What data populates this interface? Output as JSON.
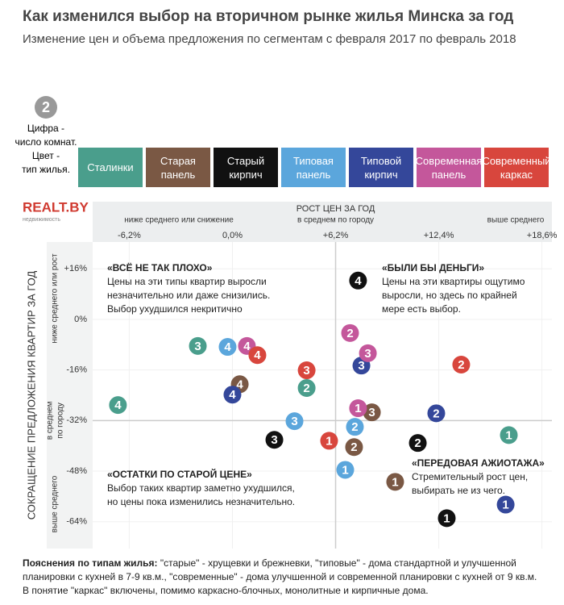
{
  "title": "Как изменился выбор на вторичном рынке жилья Минска за год",
  "subtitle": "Изменение цен и объема предложения по сегментам с февраля 2017 по февраль 2018",
  "key": {
    "sample": 2,
    "lines": [
      "Цифра -",
      "число комнат.",
      "Цвет -",
      "тип жилья."
    ]
  },
  "logo": {
    "name": "REALT.BY",
    "tagline": "недвижимость"
  },
  "footnote": {
    "label": "Пояснения по типам жилья:",
    "lines": [
      " \"старые\" - хрущевки и брежневки, \"типовые\" - дома стандартной и улучшенной",
      "планировки с кухней в 7-9 кв.м., \"современные\" - дома улучшенной и современной планировки с кухней от 9 кв.м.",
      "В понятие \"каркас\" включены, помимо каркасно-блочных, монолитные и кирпичные дома."
    ]
  },
  "chart_data": {
    "type": "scatter",
    "x_label": "РОСТ ЦЕН ЗА ГОД",
    "x_sublabels": [
      "ниже среднего или снижение",
      "в среднем по городу",
      "выше среднего"
    ],
    "y_label": "СОКРАЩЕНИЕ ПРЕДЛОЖЕНИЯ КВАРТИР ЗА ГОД",
    "y_sublabels": [
      "ниже среднего или рост",
      "в среднем",
      "по городу",
      "выше среднего"
    ],
    "xlim": [
      -8.4,
      19.2
    ],
    "ylim": [
      -72.5,
      24.5
    ],
    "xticks": [
      {
        "value": -6.2,
        "label": "-6,2%"
      },
      {
        "value": 0,
        "label": "0,0%"
      },
      {
        "value": 6.2,
        "label": "+6,2%"
      },
      {
        "value": 12.4,
        "label": "+12,4%"
      },
      {
        "value": 18.6,
        "label": "+18,6%"
      }
    ],
    "yticks": [
      {
        "value": 16,
        "label": "+16%"
      },
      {
        "value": 0,
        "label": "0%"
      },
      {
        "value": -16,
        "label": "-16%"
      },
      {
        "value": -32,
        "label": "-32%"
      },
      {
        "value": -48,
        "label": "-48%"
      },
      {
        "value": -64,
        "label": "-64%"
      }
    ],
    "mean": {
      "x": 6.2,
      "y": -32
    },
    "grid": true,
    "annotations": [
      {
        "title": "«ВСЁ НЕ ТАК ПЛОХО»",
        "lines": [
          "Цены на эти типы квартир выросли",
          "незначительно или даже снизились.",
          "Выбор ухудшился некритично"
        ]
      },
      {
        "title": "«БЫЛИ БЫ ДЕНЬГИ»",
        "lines": [
          "Цены на эти квартиры ощутимо",
          "выросли, но здесь по крайней",
          "мере есть выбор."
        ]
      },
      {
        "title": "«ОСТАТКИ ПО СТАРОЙ ЦЕНЕ»",
        "lines": [
          "Выбор таких квартир заметно ухудшился,",
          "но цены пока изменились незначительно."
        ]
      },
      {
        "title": "«ПЕРЕДОВАЯ АЖИОТАЖА»",
        "lines": [
          "Стремительный рост цен,",
          "выбирать не из чего."
        ]
      }
    ],
    "series": [
      {
        "name": "Сталинки",
        "color": "#4a9e8c",
        "rooms": [
          3,
          2,
          4,
          1
        ],
        "x": [
          -2.08,
          4.46,
          -6.88,
          16.61
        ],
        "y": [
          -8.4,
          -21.7,
          -27.1,
          -36.6
        ]
      },
      {
        "name": "Старая панель",
        "color": "#7a5844",
        "rooms": [
          4,
          3,
          2,
          1
        ],
        "x": [
          0.44,
          8.38,
          7.31,
          9.78
        ],
        "y": [
          -20.5,
          -29.4,
          -40.4,
          -51.4
        ]
      },
      {
        "name": "Старый кирпич",
        "color": "#111111",
        "rooms": [
          3,
          2,
          1,
          4
        ],
        "x": [
          2.52,
          11.14,
          12.88,
          7.55
        ],
        "y": [
          -38.1,
          -39.1,
          -62.9,
          12.3
        ]
      },
      {
        "name": "Типовая панель",
        "color": "#5ba6dc",
        "rooms": [
          4,
          3,
          2,
          1
        ],
        "x": [
          -0.29,
          3.73,
          7.36,
          6.78
        ],
        "y": [
          -8.7,
          -32.2,
          -34.0,
          -47.6
        ]
      },
      {
        "name": "Типовой кирпич",
        "color": "#34479a",
        "rooms": [
          4,
          3,
          2,
          1
        ],
        "x": [
          0,
          7.75,
          12.25,
          16.42
        ],
        "y": [
          -23.8,
          -14.6,
          -29.7,
          -58.6
        ]
      },
      {
        "name": "Современная панель",
        "color": "#c4579b",
        "rooms": [
          4,
          2,
          3,
          1
        ],
        "x": [
          0.87,
          7.07,
          8.14,
          7.55
        ],
        "y": [
          -8.4,
          -4.3,
          -10.7,
          -28.1
        ]
      },
      {
        "name": "Современный каркас",
        "color": "#d8463d",
        "rooms": [
          4,
          3,
          1,
          2
        ],
        "x": [
          1.5,
          4.46,
          5.81,
          13.75
        ],
        "y": [
          -11.3,
          -16.1,
          -38.4,
          -14.3
        ]
      }
    ]
  }
}
